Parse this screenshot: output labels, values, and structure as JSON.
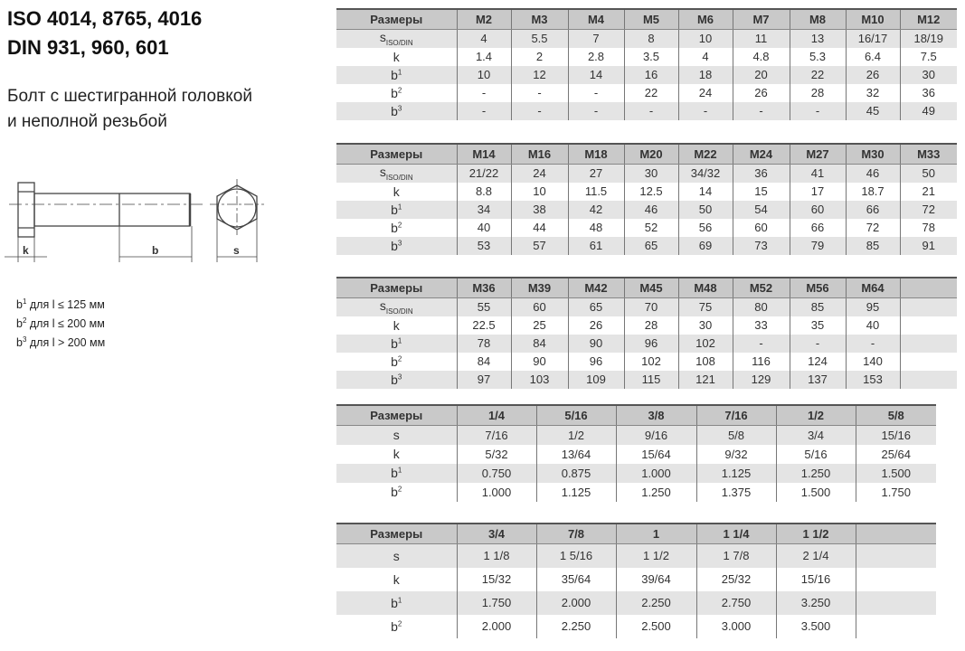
{
  "header": {
    "title_line1": "ISO 4014, 8765, 4016",
    "title_line2": "DIN 931, 960, 601",
    "subtitle_line1": "Болт с шестигранной головкой",
    "subtitle_line2": "и неполной резьбой"
  },
  "drawing": {
    "label_k": "k",
    "label_b": "b",
    "label_s": "s"
  },
  "notes": [
    {
      "base": "b",
      "sup": "1",
      "text": " для l ≤ 125 мм"
    },
    {
      "base": "b",
      "sup": "2",
      "text": " для l ≤ 200 мм"
    },
    {
      "base": "b",
      "sup": "3",
      "text": " для l > 200 мм"
    }
  ],
  "tables": [
    {
      "headers": [
        "Размеры",
        "M2",
        "M3",
        "M4",
        "M5",
        "M6",
        "M7",
        "M8",
        "M10",
        "M12"
      ],
      "rows": [
        {
          "label": "s",
          "sub": "ISO/DIN",
          "values": [
            "4",
            "5.5",
            "7",
            "8",
            "10",
            "11",
            "13",
            "16/17",
            "18/19"
          ]
        },
        {
          "label": "k",
          "values": [
            "1.4",
            "2",
            "2.8",
            "3.5",
            "4",
            "4.8",
            "5.3",
            "6.4",
            "7.5"
          ]
        },
        {
          "label": "b",
          "sup": "1",
          "values": [
            "10",
            "12",
            "14",
            "16",
            "18",
            "20",
            "22",
            "26",
            "30"
          ]
        },
        {
          "label": "b",
          "sup": "2",
          "values": [
            "-",
            "-",
            "-",
            "22",
            "24",
            "26",
            "28",
            "32",
            "36"
          ]
        },
        {
          "label": "b",
          "sup": "3",
          "values": [
            "-",
            "-",
            "-",
            "-",
            "-",
            "-",
            "-",
            "45",
            "49"
          ]
        }
      ]
    },
    {
      "headers": [
        "Размеры",
        "M14",
        "M16",
        "M18",
        "M20",
        "M22",
        "M24",
        "M27",
        "M30",
        "M33"
      ],
      "rows": [
        {
          "label": "s",
          "sub": "ISO/DIN",
          "values": [
            "21/22",
            "24",
            "27",
            "30",
            "34/32",
            "36",
            "41",
            "46",
            "50"
          ]
        },
        {
          "label": "k",
          "values": [
            "8.8",
            "10",
            "11.5",
            "12.5",
            "14",
            "15",
            "17",
            "18.7",
            "21"
          ]
        },
        {
          "label": "b",
          "sup": "1",
          "values": [
            "34",
            "38",
            "42",
            "46",
            "50",
            "54",
            "60",
            "66",
            "72"
          ]
        },
        {
          "label": "b",
          "sup": "2",
          "values": [
            "40",
            "44",
            "48",
            "52",
            "56",
            "60",
            "66",
            "72",
            "78"
          ]
        },
        {
          "label": "b",
          "sup": "3",
          "values": [
            "53",
            "57",
            "61",
            "65",
            "69",
            "73",
            "79",
            "85",
            "91"
          ]
        }
      ]
    },
    {
      "headers": [
        "Размеры",
        "M36",
        "M39",
        "M42",
        "M45",
        "M48",
        "M52",
        "M56",
        "M64",
        ""
      ],
      "rows": [
        {
          "label": "s",
          "sub": "ISO/DIN",
          "values": [
            "55",
            "60",
            "65",
            "70",
            "75",
            "80",
            "85",
            "95",
            ""
          ]
        },
        {
          "label": "k",
          "values": [
            "22.5",
            "25",
            "26",
            "28",
            "30",
            "33",
            "35",
            "40",
            ""
          ]
        },
        {
          "label": "b",
          "sup": "1",
          "values": [
            "78",
            "84",
            "90",
            "96",
            "102",
            "-",
            "-",
            "-",
            ""
          ]
        },
        {
          "label": "b",
          "sup": "2",
          "values": [
            "84",
            "90",
            "96",
            "102",
            "108",
            "116",
            "124",
            "140",
            ""
          ]
        },
        {
          "label": "b",
          "sup": "3",
          "values": [
            "97",
            "103",
            "109",
            "115",
            "121",
            "129",
            "137",
            "153",
            ""
          ]
        }
      ]
    },
    {
      "headers": [
        "Размеры",
        "1/4",
        "5/16",
        "3/8",
        "7/16",
        "1/2",
        "5/8"
      ],
      "rows": [
        {
          "label": "s",
          "values": [
            "7/16",
            "1/2",
            "9/16",
            "5/8",
            "3/4",
            "15/16"
          ]
        },
        {
          "label": "k",
          "values": [
            "5/32",
            "13/64",
            "15/64",
            "9/32",
            "5/16",
            "25/64"
          ]
        },
        {
          "label": "b",
          "sup": "1",
          "values": [
            "0.750",
            "0.875",
            "1.000",
            "1.125",
            "1.250",
            "1.500"
          ]
        },
        {
          "label": "b",
          "sup": "2",
          "values": [
            "1.000",
            "1.125",
            "1.250",
            "1.375",
            "1.500",
            "1.750"
          ]
        }
      ]
    },
    {
      "headers": [
        "Размеры",
        "3/4",
        "7/8",
        "1",
        "1 1/4",
        "1 1/2",
        ""
      ],
      "rows": [
        {
          "label": "s",
          "values": [
            "1 1/8",
            "1 5/16",
            "1 1/2",
            "1 7/8",
            "2 1/4",
            ""
          ]
        },
        {
          "label": "k",
          "values": [
            "15/32",
            "35/64",
            "39/64",
            "25/32",
            "15/16",
            ""
          ]
        },
        {
          "label": "b",
          "sup": "1",
          "values": [
            "1.750",
            "2.000",
            "2.250",
            "2.750",
            "3.250",
            ""
          ]
        },
        {
          "label": "b",
          "sup": "2",
          "values": [
            "2.000",
            "2.250",
            "2.500",
            "3.000",
            "3.500",
            ""
          ]
        }
      ]
    }
  ]
}
